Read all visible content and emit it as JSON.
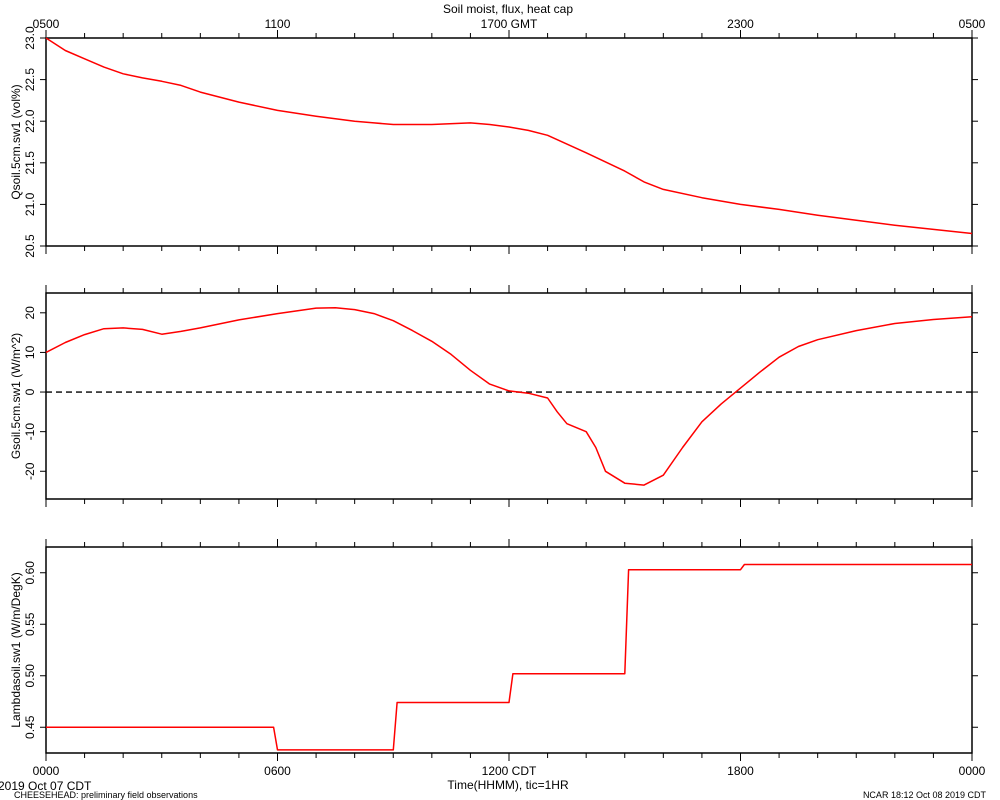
{
  "title": "Soil moist, flux, heat cap",
  "top_time_labels": [
    "0500",
    "1100",
    "1700 GMT",
    "2300",
    "0500"
  ],
  "bottom_time_labels": [
    "0000",
    "0600",
    "1200 CDT",
    "1800",
    "0000"
  ],
  "xlabel": "Time(HHMM), tic=1HR",
  "date_label": "2019 Oct 07 CDT",
  "footer_left": "CHEESEHEAD: preliminary field observations",
  "footer_right": "NCAR 18:12 Oct 08 2019 CDT",
  "colors": {
    "series": "#ff0000",
    "axes": "#000000",
    "zero_line": "#000000"
  },
  "chart_data": [
    {
      "type": "line",
      "ylabel": "Qsoil.5cm.sw1 (vol%)",
      "ylim": [
        20.5,
        23.0
      ],
      "yticks": [
        20.5,
        21.0,
        21.5,
        22.0,
        22.5,
        23.0
      ],
      "ytick_labels": [
        "20.5",
        "21.0",
        "21.5",
        "22.0",
        "22.5",
        "23.0"
      ],
      "xlim": [
        0,
        24
      ],
      "series": [
        {
          "x": [
            0,
            0.5,
            1,
            1.5,
            2,
            2.5,
            3,
            3.5,
            4,
            5,
            6,
            7,
            8,
            8.5,
            9,
            10,
            11,
            11.5,
            12,
            12.5,
            13,
            14,
            15,
            15.5,
            16,
            17,
            18,
            19,
            20,
            21,
            22,
            23,
            24
          ],
          "y": [
            23.0,
            22.85,
            22.75,
            22.65,
            22.57,
            22.52,
            22.48,
            22.43,
            22.35,
            22.23,
            22.13,
            22.06,
            22.0,
            21.98,
            21.96,
            21.96,
            21.98,
            21.96,
            21.93,
            21.89,
            21.83,
            21.62,
            21.4,
            21.27,
            21.18,
            21.08,
            21.0,
            20.94,
            20.87,
            20.81,
            20.75,
            20.7,
            20.65
          ]
        }
      ]
    },
    {
      "type": "line",
      "ylabel": "Gsoil.5cm.sw1 (W/m^2)",
      "ylim": [
        -27,
        25
      ],
      "yticks": [
        -20,
        -10,
        0,
        10,
        20
      ],
      "ytick_labels": [
        "-20",
        "-10",
        "0",
        "10",
        "20"
      ],
      "zero_line": true,
      "xlim": [
        0,
        24
      ],
      "series": [
        {
          "x": [
            0,
            0.5,
            1,
            1.5,
            2,
            2.5,
            3,
            3.5,
            4,
            5,
            6,
            7,
            7.5,
            8,
            8.5,
            9,
            9.5,
            10,
            10.5,
            11,
            11.5,
            12,
            12.5,
            13,
            13.25,
            13.5,
            14,
            14.25,
            14.5,
            15,
            15.5,
            16,
            16.5,
            17,
            17.5,
            18,
            18.5,
            19,
            19.5,
            20,
            21,
            22,
            23,
            24
          ],
          "y": [
            10,
            12.5,
            14.5,
            16,
            16.2,
            15.8,
            14.6,
            15.3,
            16.2,
            18.2,
            19.8,
            21.2,
            21.3,
            20.8,
            19.8,
            18,
            15.5,
            12.8,
            9.5,
            5.5,
            2,
            0.3,
            -0.3,
            -1.5,
            -5,
            -8,
            -10,
            -14,
            -20,
            -23,
            -23.5,
            -21,
            -14,
            -7.5,
            -3,
            1,
            5,
            8.8,
            11.5,
            13.2,
            15.5,
            17.3,
            18.3,
            19
          ]
        }
      ]
    },
    {
      "type": "line",
      "ylabel": "Lambdasoil.sw1 (W/m/DegK)",
      "ylim": [
        0.425,
        0.625
      ],
      "yticks": [
        0.45,
        0.5,
        0.55,
        0.6
      ],
      "ytick_labels": [
        "0.45",
        "0.50",
        "0.55",
        "0.60"
      ],
      "xlim": [
        0,
        24
      ],
      "series": [
        {
          "x": [
            0,
            5.9,
            6.0,
            9.0,
            9.1,
            12.0,
            12.1,
            15.0,
            15.1,
            18.0,
            18.1,
            24
          ],
          "y": [
            0.45,
            0.45,
            0.428,
            0.428,
            0.474,
            0.474,
            0.502,
            0.502,
            0.603,
            0.603,
            0.608,
            0.608
          ]
        }
      ]
    }
  ]
}
